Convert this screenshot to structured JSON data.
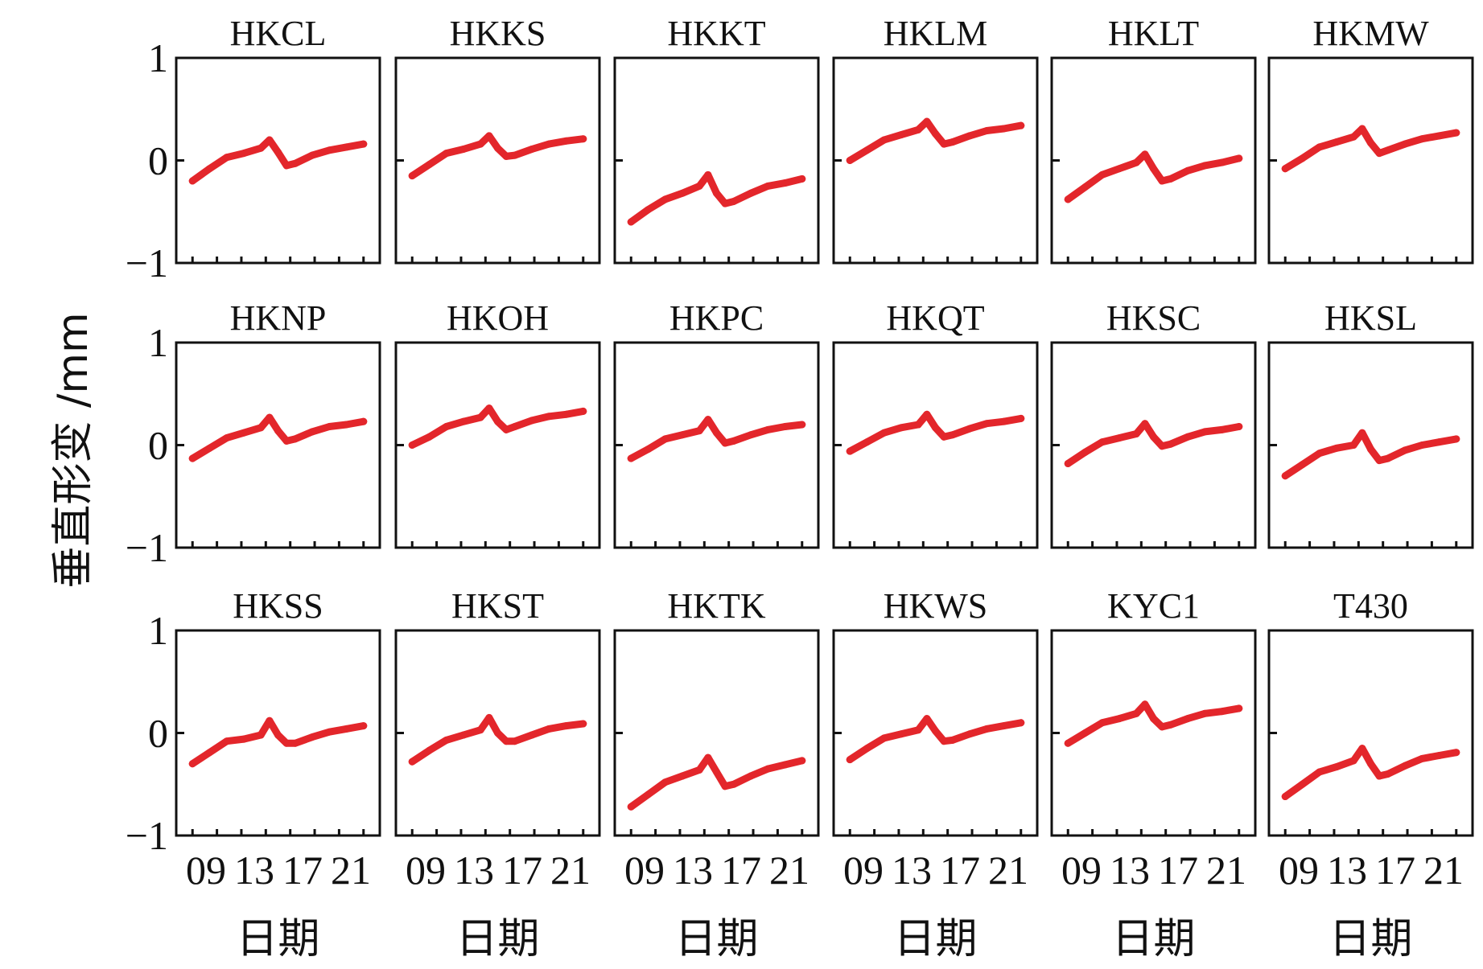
{
  "figure": {
    "ylabel": "垂直形变 /mm",
    "xlabel": "日期"
  },
  "chart_data": {
    "type": "line",
    "layout": "small-multiples 3x6",
    "ylim": [
      -1,
      1
    ],
    "yticks": [
      1,
      0,
      -1
    ],
    "ytick_labels": [
      "1",
      "0",
      "−1"
    ],
    "xtick_labels": [
      "09",
      "13",
      "17",
      "21"
    ],
    "xlabel": "日期",
    "ylabel": "垂直形变 /mm",
    "color": "#e3262b",
    "x": [
      0,
      0.1,
      0.2,
      0.3,
      0.4,
      0.45,
      0.5,
      0.55,
      0.6,
      0.7,
      0.8,
      0.9,
      1.0
    ],
    "panels": [
      {
        "title": "HKCL",
        "values": [
          -0.2,
          -0.08,
          0.03,
          0.07,
          0.12,
          0.2,
          0.08,
          -0.05,
          -0.03,
          0.05,
          0.1,
          0.13,
          0.16
        ]
      },
      {
        "title": "HKKS",
        "values": [
          -0.15,
          -0.04,
          0.07,
          0.11,
          0.16,
          0.24,
          0.12,
          0.04,
          0.05,
          0.11,
          0.16,
          0.19,
          0.21
        ]
      },
      {
        "title": "HKKT",
        "values": [
          -0.6,
          -0.48,
          -0.38,
          -0.32,
          -0.25,
          -0.14,
          -0.32,
          -0.42,
          -0.4,
          -0.32,
          -0.25,
          -0.22,
          -0.18
        ]
      },
      {
        "title": "HKLM",
        "values": [
          0.0,
          0.1,
          0.2,
          0.25,
          0.3,
          0.38,
          0.26,
          0.16,
          0.18,
          0.24,
          0.29,
          0.31,
          0.34
        ]
      },
      {
        "title": "HKLT",
        "values": [
          -0.38,
          -0.26,
          -0.14,
          -0.08,
          -0.02,
          0.06,
          -0.08,
          -0.2,
          -0.18,
          -0.1,
          -0.05,
          -0.02,
          0.02
        ]
      },
      {
        "title": "HKMW",
        "values": [
          -0.08,
          0.02,
          0.13,
          0.18,
          0.23,
          0.31,
          0.17,
          0.07,
          0.1,
          0.16,
          0.21,
          0.24,
          0.27
        ]
      },
      {
        "title": "HKNP",
        "values": [
          -0.13,
          -0.03,
          0.07,
          0.12,
          0.17,
          0.27,
          0.14,
          0.04,
          0.06,
          0.13,
          0.18,
          0.2,
          0.23
        ]
      },
      {
        "title": "HKOH",
        "values": [
          0.0,
          0.08,
          0.18,
          0.23,
          0.27,
          0.36,
          0.23,
          0.15,
          0.18,
          0.24,
          0.28,
          0.3,
          0.33
        ]
      },
      {
        "title": "HKPC",
        "values": [
          -0.13,
          -0.04,
          0.06,
          0.1,
          0.14,
          0.25,
          0.12,
          0.02,
          0.04,
          0.1,
          0.15,
          0.18,
          0.2
        ]
      },
      {
        "title": "HKQT",
        "values": [
          -0.06,
          0.03,
          0.12,
          0.17,
          0.2,
          0.3,
          0.17,
          0.08,
          0.1,
          0.16,
          0.21,
          0.23,
          0.26
        ]
      },
      {
        "title": "HKSC",
        "values": [
          -0.18,
          -0.07,
          0.03,
          0.07,
          0.11,
          0.21,
          0.08,
          -0.01,
          0.01,
          0.08,
          0.13,
          0.15,
          0.18
        ]
      },
      {
        "title": "HKSL",
        "values": [
          -0.3,
          -0.19,
          -0.08,
          -0.03,
          0.0,
          0.12,
          -0.04,
          -0.15,
          -0.13,
          -0.05,
          0.0,
          0.03,
          0.06
        ]
      },
      {
        "title": "HKSS",
        "values": [
          -0.3,
          -0.19,
          -0.08,
          -0.06,
          -0.02,
          0.12,
          -0.02,
          -0.1,
          -0.1,
          -0.04,
          0.01,
          0.04,
          0.07
        ]
      },
      {
        "title": "HKST",
        "values": [
          -0.28,
          -0.17,
          -0.07,
          -0.02,
          0.03,
          0.15,
          0.0,
          -0.08,
          -0.08,
          -0.02,
          0.04,
          0.07,
          0.09
        ]
      },
      {
        "title": "HKTK",
        "values": [
          -0.72,
          -0.6,
          -0.48,
          -0.42,
          -0.36,
          -0.24,
          -0.38,
          -0.52,
          -0.5,
          -0.42,
          -0.35,
          -0.31,
          -0.27
        ]
      },
      {
        "title": "HKWS",
        "values": [
          -0.26,
          -0.15,
          -0.05,
          -0.01,
          0.03,
          0.14,
          0.02,
          -0.08,
          -0.07,
          -0.01,
          0.04,
          0.07,
          0.1
        ]
      },
      {
        "title": "KYC1",
        "values": [
          -0.1,
          0.0,
          0.1,
          0.14,
          0.19,
          0.28,
          0.14,
          0.06,
          0.08,
          0.14,
          0.19,
          0.21,
          0.24
        ]
      },
      {
        "title": "T430",
        "values": [
          -0.62,
          -0.5,
          -0.38,
          -0.33,
          -0.27,
          -0.15,
          -0.3,
          -0.42,
          -0.4,
          -0.32,
          -0.25,
          -0.22,
          -0.19
        ]
      }
    ]
  }
}
